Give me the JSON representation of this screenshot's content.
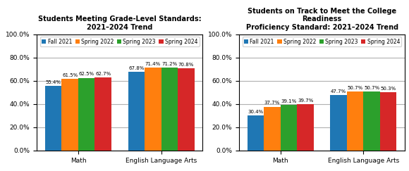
{
  "chart_data": [
    {
      "type": "bar",
      "title": "Students Meeting Grade-Level Standards:\n2021–2024 Trend",
      "categories": [
        "Math",
        "English Language Arts"
      ],
      "series": [
        {
          "name": "Fall 2021",
          "values": [
            55.4,
            67.8
          ],
          "value_labels": [
            "55.4%",
            "67.8%"
          ]
        },
        {
          "name": "Spring 2022",
          "values": [
            61.5,
            71.4
          ],
          "value_labels": [
            "61.5%",
            "71.4%"
          ]
        },
        {
          "name": "Spring 2023",
          "values": [
            62.5,
            71.2
          ],
          "value_labels": [
            "62.5%",
            "71.2%"
          ]
        },
        {
          "name": "Spring 2024",
          "values": [
            62.7,
            70.8
          ],
          "value_labels": [
            "62.7%",
            "70.8%"
          ]
        }
      ],
      "ylim": [
        0,
        100
      ],
      "yticks": [
        {
          "value": 0,
          "label": "0.0%"
        },
        {
          "value": 20,
          "label": "20.0%"
        },
        {
          "value": 40,
          "label": "40.0%"
        },
        {
          "value": 60,
          "label": "60.0%"
        },
        {
          "value": 80,
          "label": "80.0%"
        },
        {
          "value": 100,
          "label": "100.0%"
        }
      ],
      "grid": true,
      "legend": "upper center",
      "data_labels": true
    },
    {
      "type": "bar",
      "title": "Students on Track to Meet the College Readiness\nProficiency Standard: 2021–2024 Trend",
      "categories": [
        "Math",
        "English Language Arts"
      ],
      "series": [
        {
          "name": "Fall 2021",
          "values": [
            30.4,
            47.7
          ],
          "value_labels": [
            "30.4%",
            "47.7%"
          ]
        },
        {
          "name": "Spring 2022",
          "values": [
            37.7,
            50.7
          ],
          "value_labels": [
            "37.7%",
            "50.7%"
          ]
        },
        {
          "name": "Spring 2023",
          "values": [
            39.1,
            50.7
          ],
          "value_labels": [
            "39.1%",
            "50.7%"
          ]
        },
        {
          "name": "Spring 2024",
          "values": [
            39.7,
            50.3
          ],
          "value_labels": [
            "39.7%",
            "50.3%"
          ]
        }
      ],
      "ylim": [
        0,
        100
      ],
      "yticks": [
        {
          "value": 0,
          "label": "0.0%"
        },
        {
          "value": 20,
          "label": "20.0%"
        },
        {
          "value": 40,
          "label": "40.0%"
        },
        {
          "value": 60,
          "label": "60.0%"
        },
        {
          "value": 80,
          "label": "80.0%"
        },
        {
          "value": 100,
          "label": "100.0%"
        }
      ],
      "grid": true,
      "legend": "upper center",
      "data_labels": true
    }
  ]
}
